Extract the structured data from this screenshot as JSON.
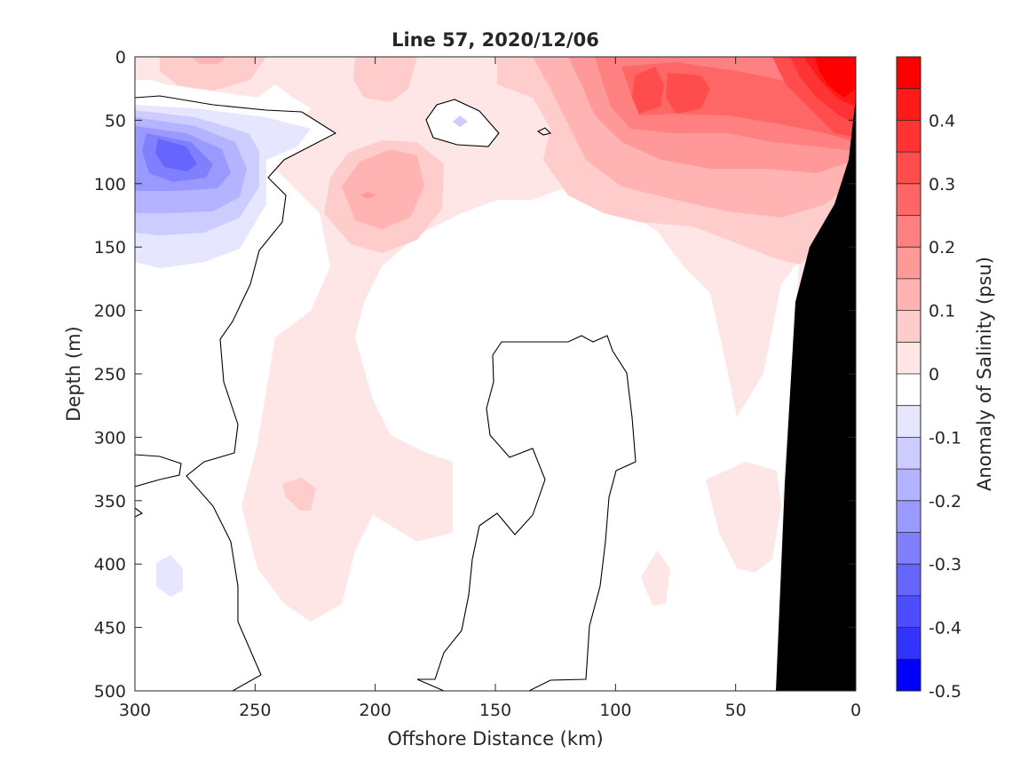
{
  "chart_data": {
    "type": "heatmap",
    "subtype": "filled-contour",
    "title": "Line 57, 2020/12/06",
    "xlabel": "Offshore Distance (km)",
    "ylabel": "Depth (m)",
    "colorbar_label": "Anomaly of Salinity (psu)",
    "xlim": [
      300,
      0
    ],
    "ylim": [
      500,
      0
    ],
    "x_reversed": true,
    "y_reversed": true,
    "xticks": [
      300,
      250,
      200,
      150,
      100,
      50,
      0
    ],
    "yticks": [
      0,
      50,
      100,
      150,
      200,
      250,
      300,
      350,
      400,
      450,
      500
    ],
    "colorbar_ticks": [
      0.4,
      0.3,
      0.2,
      0.1,
      0,
      -0.1,
      -0.2,
      -0.3,
      -0.4,
      -0.5
    ],
    "colorbar_range": [
      -0.5,
      0.5
    ],
    "colorbar_levels": [
      {
        "lo": 0.45,
        "hi": 0.5,
        "color": "#ff0000"
      },
      {
        "lo": 0.4,
        "hi": 0.45,
        "color": "#ff1a1a"
      },
      {
        "lo": 0.35,
        "hi": 0.4,
        "color": "#ff3333"
      },
      {
        "lo": 0.3,
        "hi": 0.35,
        "color": "#ff4d4d"
      },
      {
        "lo": 0.25,
        "hi": 0.3,
        "color": "#ff6666"
      },
      {
        "lo": 0.2,
        "hi": 0.25,
        "color": "#ff8080"
      },
      {
        "lo": 0.15,
        "hi": 0.2,
        "color": "#ff9999"
      },
      {
        "lo": 0.1,
        "hi": 0.15,
        "color": "#ffb3b3"
      },
      {
        "lo": 0.05,
        "hi": 0.1,
        "color": "#ffcccc"
      },
      {
        "lo": 0.0,
        "hi": 0.05,
        "color": "#ffe6e6"
      },
      {
        "lo": -0.05,
        "hi": 0.0,
        "color": "#ffffff"
      },
      {
        "lo": -0.1,
        "hi": -0.05,
        "color": "#e6e6ff"
      },
      {
        "lo": -0.15,
        "hi": -0.1,
        "color": "#ccccff"
      },
      {
        "lo": -0.2,
        "hi": -0.15,
        "color": "#b3b3ff"
      },
      {
        "lo": -0.25,
        "hi": -0.2,
        "color": "#9999ff"
      },
      {
        "lo": -0.3,
        "hi": -0.25,
        "color": "#8080ff"
      },
      {
        "lo": -0.35,
        "hi": -0.3,
        "color": "#6666ff"
      },
      {
        "lo": -0.4,
        "hi": -0.35,
        "color": "#4d4dff"
      },
      {
        "lo": -0.45,
        "hi": -0.4,
        "color": "#3333ff"
      },
      {
        "lo": -0.5,
        "hi": -0.45,
        "color": "#0000ff"
      }
    ],
    "zero_contour_color": "#000000",
    "land_mask_color": "#000000",
    "features": [
      {
        "kind": "anomaly",
        "value": -0.3,
        "x": 280,
        "y": 80
      },
      {
        "kind": "anomaly",
        "value": -0.1,
        "x": 283,
        "y": 410
      },
      {
        "kind": "anomaly",
        "value": 0.2,
        "x": 200,
        "y": 110
      },
      {
        "kind": "anomaly",
        "value": 0.45,
        "x": 10,
        "y": 15
      },
      {
        "kind": "anomaly",
        "value": 0.3,
        "x": 80,
        "y": 40
      },
      {
        "kind": "anomaly",
        "value": 0.1,
        "x": 230,
        "y": 345
      },
      {
        "kind": "anomaly",
        "value": -0.1,
        "x": 165,
        "y": 52
      }
    ]
  }
}
